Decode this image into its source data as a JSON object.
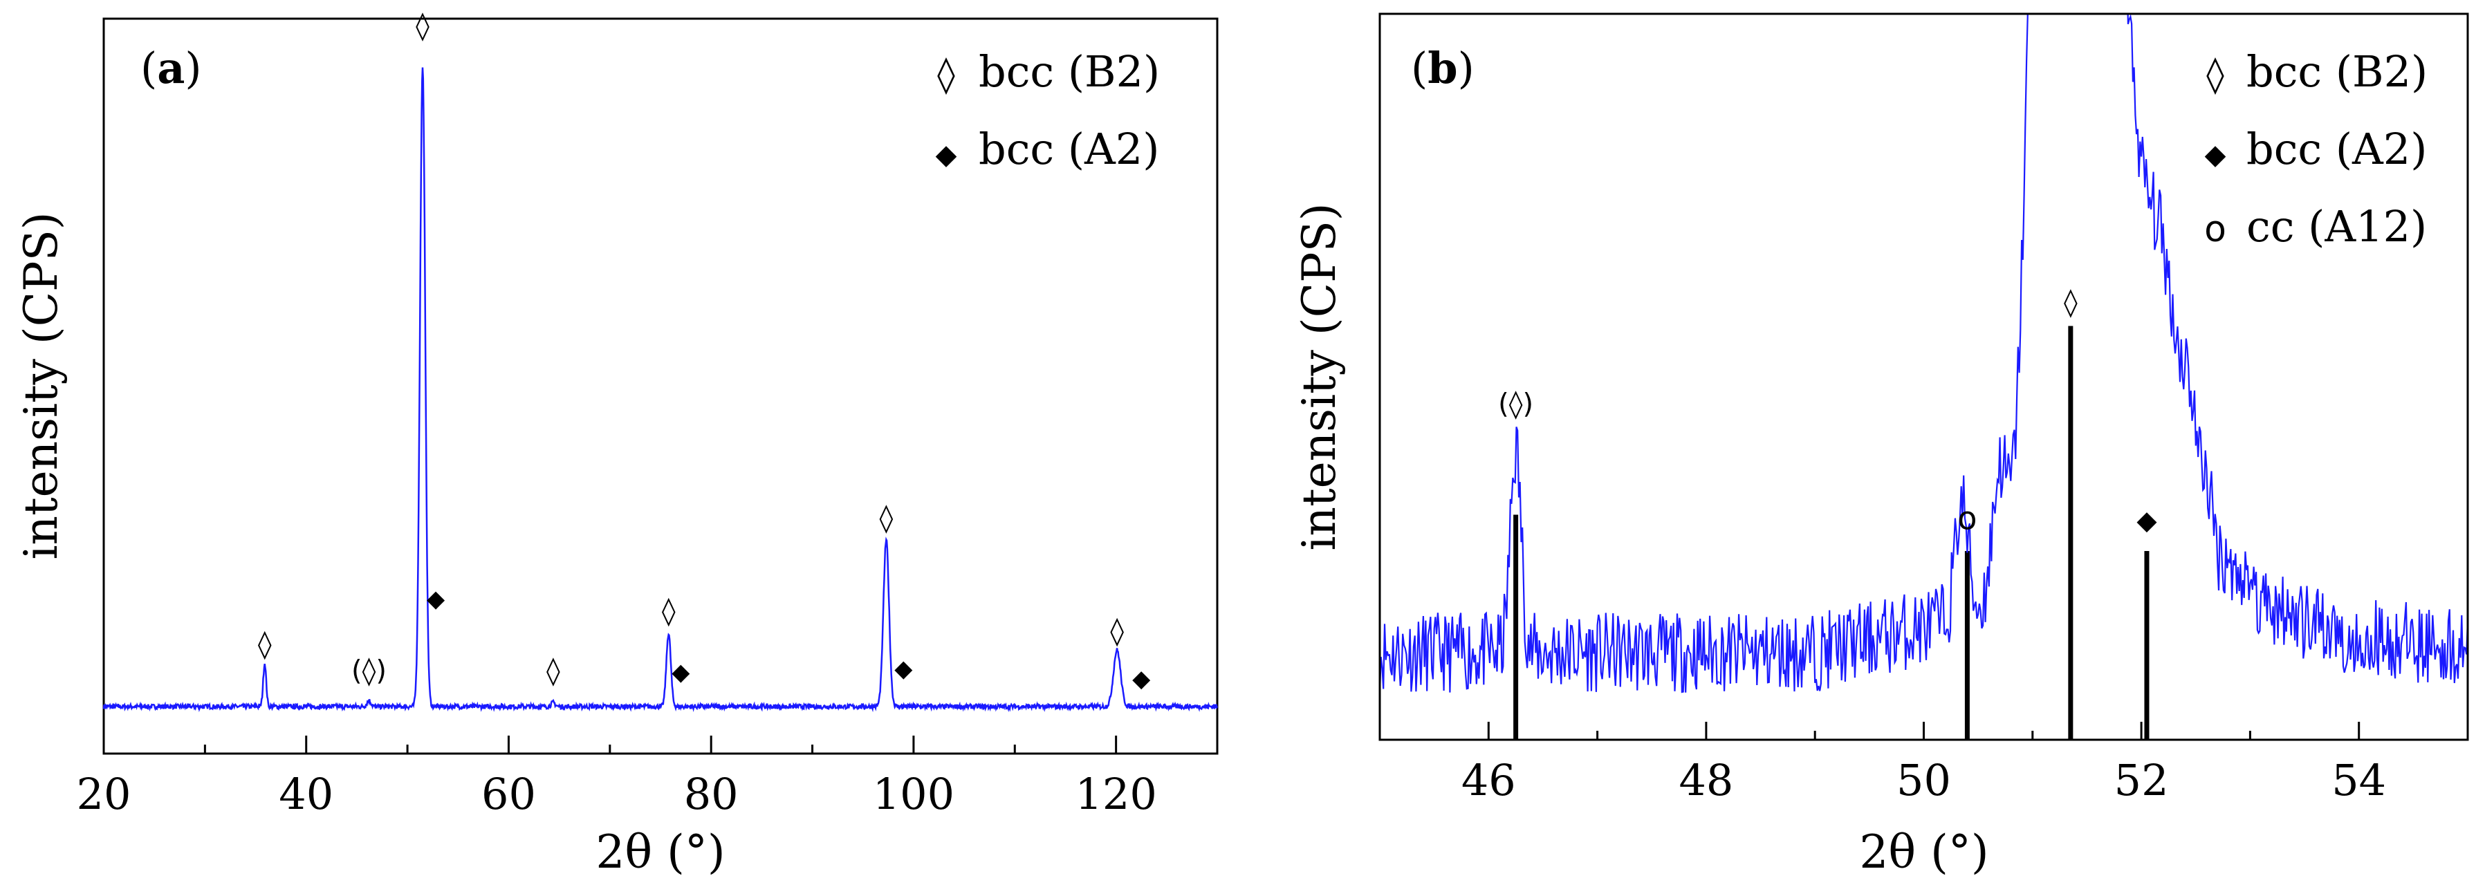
{
  "chart_data": [
    {
      "type": "line",
      "panel_label": "a",
      "xlabel": "2θ (°)",
      "ylabel": "intensity (CPS)",
      "xlim": [
        20,
        130
      ],
      "ylim": [
        0,
        100
      ],
      "x_ticks": [
        20,
        40,
        60,
        80,
        100,
        120
      ],
      "x_tick_labels": [
        "20",
        "40",
        "60",
        "80",
        "100",
        "120"
      ],
      "line_color": "#1a1aff",
      "legend": [
        {
          "symbol": "◊",
          "label": "bcc (B2)"
        },
        {
          "symbol": "◆",
          "label": "bcc (A2)"
        }
      ],
      "peaks": [
        {
          "x": 35.9,
          "height": 6.5,
          "width": 0.15
        },
        {
          "x": 46.2,
          "height": 0.9,
          "width": 0.2
        },
        {
          "x": 51.5,
          "height": 96,
          "width": 0.26
        },
        {
          "x": 64.4,
          "height": 0.6,
          "width": 0.2
        },
        {
          "x": 75.8,
          "height": 11,
          "width": 0.22
        },
        {
          "x": 97.3,
          "height": 25,
          "width": 0.28
        },
        {
          "x": 120.1,
          "height": 8.5,
          "width": 0.35
        }
      ],
      "annotations": [
        {
          "x": 35.9,
          "y": 8,
          "text": "◊"
        },
        {
          "x": 46.2,
          "y": 4,
          "text": "(◊)"
        },
        {
          "x": 51.5,
          "y": 101,
          "text": "◊"
        },
        {
          "x": 52.8,
          "y": 15,
          "text": "◆"
        },
        {
          "x": 64.4,
          "y": 4,
          "text": "◊"
        },
        {
          "x": 75.8,
          "y": 13,
          "text": "◊"
        },
        {
          "x": 77.0,
          "y": 4,
          "text": "◆"
        },
        {
          "x": 97.3,
          "y": 27,
          "text": "◊"
        },
        {
          "x": 99.0,
          "y": 4.5,
          "text": "◆"
        },
        {
          "x": 120.1,
          "y": 10,
          "text": "◊"
        },
        {
          "x": 122.5,
          "y": 3,
          "text": "◆"
        }
      ]
    },
    {
      "type": "line",
      "panel_label": "b",
      "xlabel": "2θ (°)",
      "ylabel": "intensity (CPS)",
      "xlim": [
        45.0,
        55.0
      ],
      "ylim": [
        0,
        100
      ],
      "x_ticks": [
        46,
        48,
        50,
        52,
        54
      ],
      "x_tick_labels": [
        "46",
        "48",
        "50",
        "52",
        "54"
      ],
      "line_color": "#1a1aff",
      "legend": [
        {
          "symbol": "◊",
          "label": "bcc (B2)"
        },
        {
          "symbol": "◆",
          "label": "bcc (A2)"
        },
        {
          "symbol": "o",
          "label": "cc (A12)"
        }
      ],
      "reference_lines": [
        {
          "x": 46.25,
          "height": 31,
          "marker": "(◊)",
          "marker_y": 45
        },
        {
          "x": 50.4,
          "height": 26,
          "marker": "o",
          "marker_y": 29
        },
        {
          "x": 51.35,
          "height": 57,
          "marker": "◊",
          "marker_y": 59
        },
        {
          "x": 52.05,
          "height": 26,
          "marker": "◆",
          "marker_y": 29
        }
      ]
    }
  ]
}
